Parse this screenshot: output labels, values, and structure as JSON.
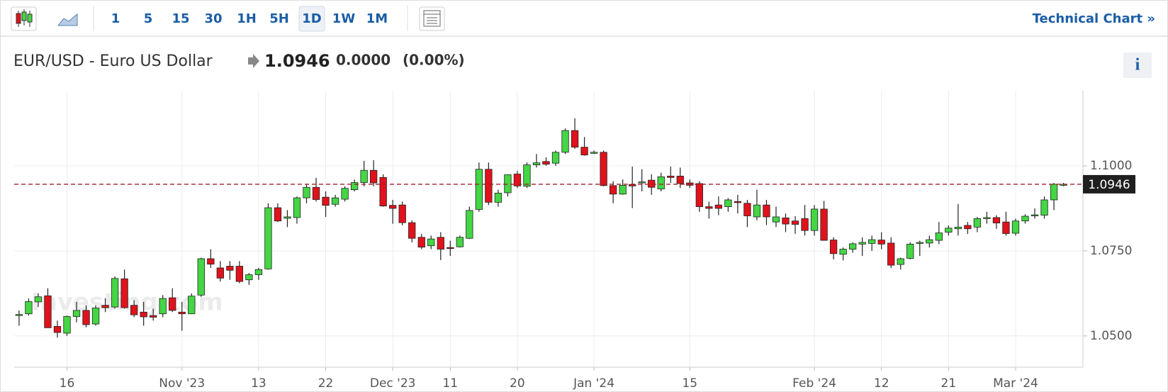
{
  "toolbar": {
    "intervals": [
      "1",
      "5",
      "15",
      "30",
      "1H",
      "5H",
      "1D",
      "1W",
      "1M"
    ],
    "link": "Technical Chart »"
  },
  "header": {
    "instrument": "EUR/USD - Euro US Dollar",
    "change": "0.0000",
    "change_percent": "(0.00%)",
    "info": "i"
  },
  "watermark": "Investing.com",
  "chart_data": {
    "type": "candlestick",
    "categories": [
      null,
      null,
      null,
      null,
      null,
      "16",
      null,
      null,
      null,
      null,
      null,
      null,
      null,
      null,
      null,
      null,
      null,
      "Nov '23",
      null,
      null,
      null,
      null,
      null,
      null,
      null,
      "13",
      null,
      null,
      null,
      null,
      null,
      null,
      "22",
      null,
      null,
      null,
      null,
      null,
      null,
      "Dec '23",
      null,
      null,
      null,
      null,
      null,
      "11",
      null,
      null,
      null,
      null,
      null,
      null,
      "20",
      null,
      null,
      null,
      null,
      null,
      null,
      null,
      "Jan '24",
      null,
      null,
      null,
      null,
      null,
      null,
      null,
      null,
      null,
      "15",
      null,
      null,
      null,
      null,
      null,
      null,
      null,
      null,
      null,
      null,
      null,
      null,
      "Feb '24",
      null,
      null,
      null,
      null,
      null,
      null,
      "12",
      null,
      null,
      null,
      null,
      null,
      null,
      "21",
      null,
      null,
      null,
      null,
      null,
      null,
      "Mar '24",
      null,
      null,
      null,
      null,
      null
    ],
    "open": [
      1.056,
      1.0565,
      1.06,
      1.0618,
      1.0528,
      1.0508,
      1.0557,
      1.0575,
      1.0535,
      1.059,
      1.0585,
      1.0668,
      1.059,
      1.057,
      1.056,
      1.0565,
      1.0612,
      1.057,
      1.0565,
      1.062,
      1.0727,
      1.07,
      1.0705,
      1.0705,
      1.0665,
      1.068,
      1.0697,
      1.0877,
      1.0846,
      1.0848,
      1.0906,
      1.0937,
      1.0908,
      1.0887,
      1.0902,
      1.093,
      1.0951,
      1.0987,
      1.0966,
      1.0884,
      1.0885,
      1.0833,
      1.079,
      1.0765,
      1.079,
      1.076,
      1.0762,
      1.0787,
      1.0872,
      1.099,
      1.0893,
      1.0921,
      1.0976,
      1.094,
      1.1003,
      1.1013,
      1.1008,
      1.104,
      1.1104,
      1.1055,
      1.104,
      1.104,
      1.0942,
      1.0917,
      1.0945,
      1.095,
      1.0958,
      1.0932,
      1.097,
      1.097,
      1.095,
      1.0948,
      1.088,
      1.0885,
      1.088,
      1.0895,
      1.089,
      1.085,
      1.0885,
      1.0835,
      1.0847,
      1.0838,
      1.0845,
      1.081,
      1.0873,
      1.0782,
      1.074,
      1.0755,
      1.077,
      1.0772,
      1.0782,
      1.0773,
      1.071,
      1.0728,
      1.0772,
      1.0773,
      1.0781,
      1.0805,
      1.0815,
      1.0825,
      1.082,
      1.0846,
      1.0848,
      1.0835,
      1.0802,
      1.0838,
      1.0855,
      1.0855,
      1.09,
      1.0946
    ],
    "high": [
      1.0575,
      1.061,
      1.0625,
      1.064,
      1.0545,
      1.056,
      1.06,
      1.059,
      1.059,
      1.061,
      1.0675,
      1.0695,
      1.0605,
      1.06,
      1.058,
      1.062,
      1.064,
      1.06,
      1.0625,
      1.073,
      1.0755,
      1.072,
      1.072,
      1.072,
      1.0685,
      1.07,
      1.089,
      1.089,
      1.087,
      1.091,
      1.0945,
      1.0965,
      1.0925,
      1.0915,
      1.094,
      1.096,
      1.1015,
      1.1017,
      1.0975,
      1.09,
      1.0895,
      1.084,
      1.08,
      1.0795,
      1.0805,
      1.078,
      1.0795,
      1.088,
      1.101,
      1.101,
      1.093,
      1.0975,
      1.0985,
      1.101,
      1.1035,
      1.1025,
      1.1045,
      1.111,
      1.114,
      1.1085,
      1.1045,
      1.1045,
      1.0955,
      1.096,
      1.0998,
      1.099,
      1.0975,
      1.098,
      1.0998,
      1.0995,
      1.096,
      1.0955,
      1.0895,
      1.091,
      1.0905,
      1.0915,
      1.09,
      1.093,
      1.09,
      1.088,
      1.086,
      1.0852,
      1.0885,
      1.0885,
      1.0897,
      1.079,
      1.076,
      1.0775,
      1.079,
      1.0795,
      1.0805,
      1.079,
      1.073,
      1.0775,
      1.078,
      1.0795,
      1.0835,
      1.0825,
      1.0888,
      1.0835,
      1.085,
      1.0865,
      1.0855,
      1.0865,
      1.0845,
      1.0858,
      1.0875,
      1.091,
      1.095,
      1.095
    ],
    "low": [
      1.053,
      1.056,
      1.0585,
      1.0525,
      1.0495,
      1.05,
      1.054,
      1.0525,
      1.053,
      1.057,
      1.058,
      1.058,
      1.0555,
      1.053,
      1.0545,
      1.0555,
      1.057,
      1.0515,
      1.0565,
      1.0615,
      1.07,
      1.066,
      1.0665,
      1.0655,
      1.065,
      1.0665,
      1.0695,
      1.0835,
      1.082,
      1.083,
      1.089,
      1.0895,
      1.085,
      1.088,
      1.0895,
      1.0925,
      1.094,
      1.094,
      1.088,
      1.083,
      1.0825,
      1.0775,
      1.0755,
      1.0755,
      1.0723,
      1.0735,
      1.076,
      1.0785,
      1.0865,
      1.0885,
      1.088,
      1.091,
      1.0935,
      1.0935,
      1.0995,
      1.1,
      1.1,
      1.1035,
      1.105,
      1.103,
      1.1035,
      1.094,
      1.089,
      1.0915,
      1.0876,
      1.0925,
      1.0915,
      1.0925,
      1.095,
      1.0935,
      1.0935,
      1.0865,
      1.0845,
      1.0855,
      1.0865,
      1.086,
      1.082,
      1.084,
      1.0826,
      1.082,
      1.0805,
      1.08,
      1.0795,
      1.0795,
      1.078,
      1.0725,
      1.0722,
      1.0745,
      1.0735,
      1.075,
      1.0755,
      1.07,
      1.0695,
      1.0725,
      1.0735,
      1.076,
      1.077,
      1.0795,
      1.0795,
      1.08,
      1.0805,
      1.083,
      1.0815,
      1.0795,
      1.0795,
      1.083,
      1.0845,
      1.0845,
      1.087,
      1.094
    ],
    "close": [
      1.0563,
      1.0601,
      1.0615,
      1.0524,
      1.051,
      1.0557,
      1.0575,
      1.0533,
      1.0582,
      1.0583,
      1.0669,
      1.0583,
      1.0562,
      1.0556,
      1.0555,
      1.061,
      1.0575,
      1.0565,
      1.0617,
      1.0727,
      1.0711,
      1.067,
      1.0693,
      1.066,
      1.068,
      1.0695,
      1.0877,
      1.0838,
      1.085,
      1.0906,
      1.0937,
      1.0901,
      1.0884,
      1.0906,
      1.0934,
      1.0951,
      1.0987,
      1.095,
      1.0882,
      1.0875,
      1.0833,
      1.0787,
      1.0761,
      1.0785,
      1.0755,
      1.0758,
      1.079,
      1.0869,
      1.099,
      1.0893,
      1.092,
      1.0974,
      1.0941,
      1.1003,
      1.1009,
      1.1005,
      1.104,
      1.1104,
      1.1055,
      1.1032,
      1.104,
      1.0942,
      1.0917,
      1.0943,
      1.0941,
      1.0953,
      1.0937,
      1.0968,
      1.0966,
      1.0948,
      1.0943,
      1.088,
      1.0875,
      1.0875,
      1.09,
      1.0892,
      1.0853,
      1.0885,
      1.085,
      1.085,
      1.0829,
      1.0828,
      1.081,
      1.0873,
      1.0781,
      1.0742,
      1.0755,
      1.0771,
      1.0775,
      1.0783,
      1.077,
      1.0708,
      1.0727,
      1.077,
      1.0775,
      1.0783,
      1.0803,
      1.0817,
      1.082,
      1.0815,
      1.0845,
      1.0848,
      1.0832,
      1.0801,
      1.0838,
      1.0852,
      1.0856,
      1.09,
      1.0946,
      1.0946
    ],
    "up_color": "#44d644",
    "down_color": "#e0121b",
    "last_price": {
      "value": 1.0946,
      "label": "1.0946"
    },
    "last_price_color": "#a01e2a",
    "ylim": [
      1.0408,
      1.1221
    ],
    "yticks": [
      {
        "value": 1.05,
        "label": "1.0500"
      },
      {
        "value": 1.075,
        "label": "1.0750"
      },
      {
        "value": 1.1,
        "label": "1.1000"
      }
    ],
    "grid": true
  }
}
